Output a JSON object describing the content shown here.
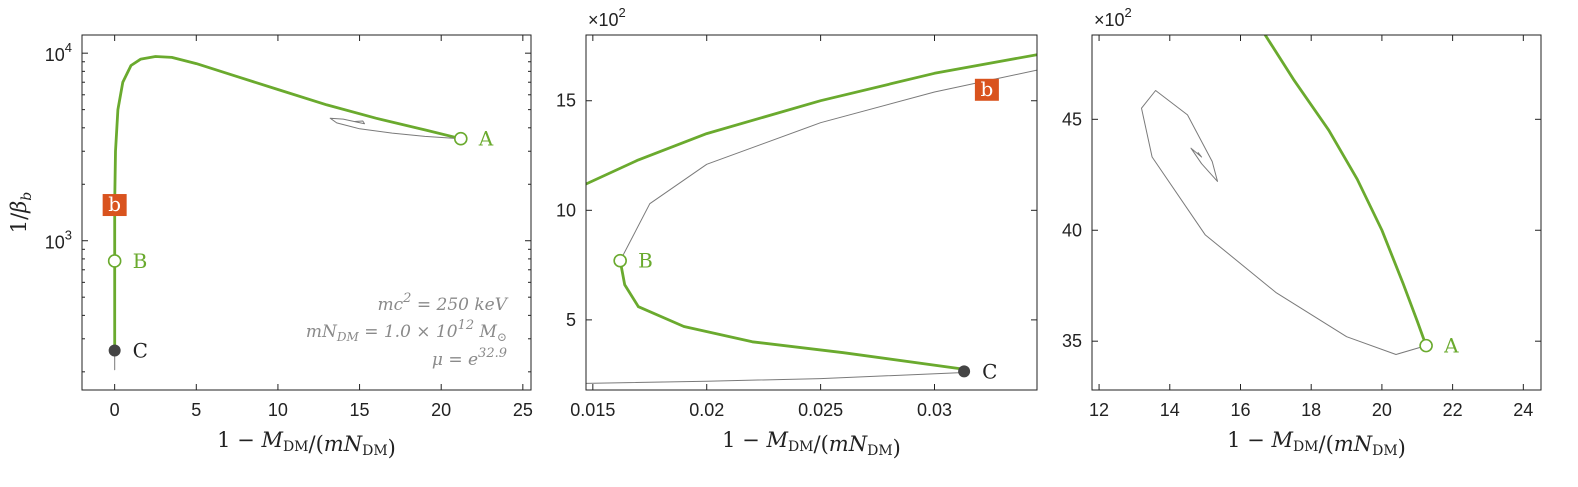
{
  "colors": {
    "green": "#6aaa2e",
    "gray": "#7a7a7a",
    "orange": "#d9531e",
    "dark": "#444444"
  },
  "chart_data": [
    {
      "type": "line",
      "xlabel": "1 − M_DM/(mN_DM)",
      "ylabel": "1/β_b",
      "xlim": [
        -2,
        25.5
      ],
      "ylim": [
        160,
        12500
      ],
      "yscale": "log",
      "xticks": [
        0,
        5,
        10,
        15,
        20,
        25
      ],
      "yticks": [
        {
          "value": 1000,
          "label": "10",
          "exp": "3"
        },
        {
          "value": 10000,
          "label": "10",
          "exp": "4"
        }
      ],
      "grid": false,
      "series": [
        {
          "color": "green",
          "width": 2.8,
          "points": [
            [
              0,
              260
            ],
            [
              0,
              500
            ],
            [
              0,
              780
            ],
            [
              0,
              1300
            ],
            [
              0,
              1600
            ],
            [
              0.05,
              3000
            ],
            [
              0.2,
              5000
            ],
            [
              0.5,
              7000
            ],
            [
              1,
              8600
            ],
            [
              1.6,
              9300
            ],
            [
              2.5,
              9600
            ],
            [
              3.5,
              9500
            ],
            [
              5,
              8800
            ],
            [
              7.5,
              7500
            ],
            [
              10,
              6400
            ],
            [
              13,
              5300
            ],
            [
              16,
              4500
            ],
            [
              19,
              3900
            ],
            [
              21.2,
              3500
            ]
          ]
        },
        {
          "color": "gray",
          "width": 1,
          "points": [
            [
              21.2,
              3500
            ],
            [
              19,
              3600
            ],
            [
              17,
              3750
            ],
            [
              15,
              3950
            ],
            [
              13.6,
              4250
            ],
            [
              13.2,
              4500
            ],
            [
              14,
              4450
            ],
            [
              15.3,
              4200
            ],
            [
              15.2,
              4350
            ],
            [
              14.7,
              4320
            ]
          ]
        },
        {
          "color": "gray",
          "width": 1,
          "points": [
            [
              0,
              260
            ],
            [
              0,
              205
            ]
          ]
        }
      ],
      "annotations": [
        {
          "x": 21.2,
          "y": 3500,
          "label": "A",
          "marker": "open"
        },
        {
          "x": 0,
          "y": 780,
          "label": "B",
          "marker": "open"
        },
        {
          "x": 0,
          "y": 260,
          "label": "C",
          "marker": "filled"
        },
        {
          "x": 0,
          "y": 1550,
          "label": "b",
          "marker": "box"
        }
      ],
      "text": [
        "mc² = 250 keV",
        "mN_DM = 1.0 × 10¹² M_⊙",
        "μ = e^32.9"
      ]
    },
    {
      "type": "line",
      "xlabel": "1 − M_DM/(mN_DM)",
      "multiplier": "×10",
      "multiplier_exp": "2",
      "xlim": [
        0.0147,
        0.0345
      ],
      "ylim": [
        1.8,
        18
      ],
      "xticks": [
        0.015,
        0.02,
        0.025,
        0.03
      ],
      "xticklabels": [
        "0.015",
        "0.02",
        "0.025",
        "0.03"
      ],
      "yticks": [
        5,
        10,
        15
      ],
      "grid": false,
      "series": [
        {
          "color": "green",
          "width": 2.8,
          "points": [
            [
              0.0147,
              11.2
            ],
            [
              0.017,
              12.3
            ],
            [
              0.02,
              13.5
            ],
            [
              0.025,
              15.0
            ],
            [
              0.03,
              16.25
            ],
            [
              0.0345,
              17.1
            ]
          ]
        },
        {
          "color": "gray",
          "width": 1,
          "points": [
            [
              0.0162,
              7.7
            ],
            [
              0.0175,
              10.3
            ],
            [
              0.02,
              12.1
            ],
            [
              0.025,
              14.0
            ],
            [
              0.03,
              15.4
            ],
            [
              0.0345,
              16.4
            ]
          ]
        },
        {
          "color": "green",
          "width": 2.8,
          "points": [
            [
              0.0162,
              7.7
            ],
            [
              0.0164,
              6.6
            ],
            [
              0.017,
              5.6
            ],
            [
              0.019,
              4.7
            ],
            [
              0.022,
              4.0
            ],
            [
              0.026,
              3.5
            ],
            [
              0.0313,
              2.75
            ]
          ]
        },
        {
          "color": "gray",
          "width": 1,
          "points": [
            [
              0.0147,
              2.1
            ],
            [
              0.02,
              2.2
            ],
            [
              0.025,
              2.32
            ],
            [
              0.0313,
              2.6
            ]
          ]
        }
      ],
      "annotations": [
        {
          "x": 0.0162,
          "y": 7.7,
          "label": "B",
          "marker": "open"
        },
        {
          "x": 0.0313,
          "y": 2.65,
          "label": "C",
          "marker": "filled"
        },
        {
          "x": 0.0323,
          "y": 15.5,
          "label": "b",
          "marker": "box"
        }
      ]
    },
    {
      "type": "line",
      "xlabel": "1 − M_DM/(mN_DM)",
      "multiplier": "×10",
      "multiplier_exp": "2",
      "xlim": [
        11.8,
        24.5
      ],
      "ylim": [
        32.8,
        48.8
      ],
      "xticks": [
        12,
        14,
        16,
        18,
        20,
        22,
        24
      ],
      "yticks": [
        35,
        40,
        45
      ],
      "grid": false,
      "series": [
        {
          "color": "green",
          "width": 2.8,
          "points": [
            [
              16.7,
              48.8
            ],
            [
              17.5,
              46.8
            ],
            [
              18.5,
              44.5
            ],
            [
              19.3,
              42.3
            ],
            [
              20.0,
              40.0
            ],
            [
              20.6,
              37.6
            ],
            [
              21.0,
              35.9
            ],
            [
              21.25,
              34.8
            ]
          ]
        },
        {
          "color": "gray",
          "width": 1,
          "points": [
            [
              21.25,
              34.8
            ],
            [
              20.4,
              34.4
            ],
            [
              19,
              35.2
            ],
            [
              17,
              37.2
            ],
            [
              15,
              39.8
            ],
            [
              13.5,
              43.3
            ],
            [
              13.2,
              45.5
            ],
            [
              13.6,
              46.3
            ],
            [
              14.5,
              45.2
            ],
            [
              15.2,
              43.1
            ],
            [
              15.35,
              42.2
            ],
            [
              14.9,
              43.0
            ],
            [
              14.6,
              43.7
            ],
            [
              14.9,
              43.3
            ],
            [
              14.8,
              43.5
            ]
          ]
        }
      ],
      "annotations": [
        {
          "x": 21.25,
          "y": 34.8,
          "label": "A",
          "marker": "open"
        }
      ]
    }
  ]
}
